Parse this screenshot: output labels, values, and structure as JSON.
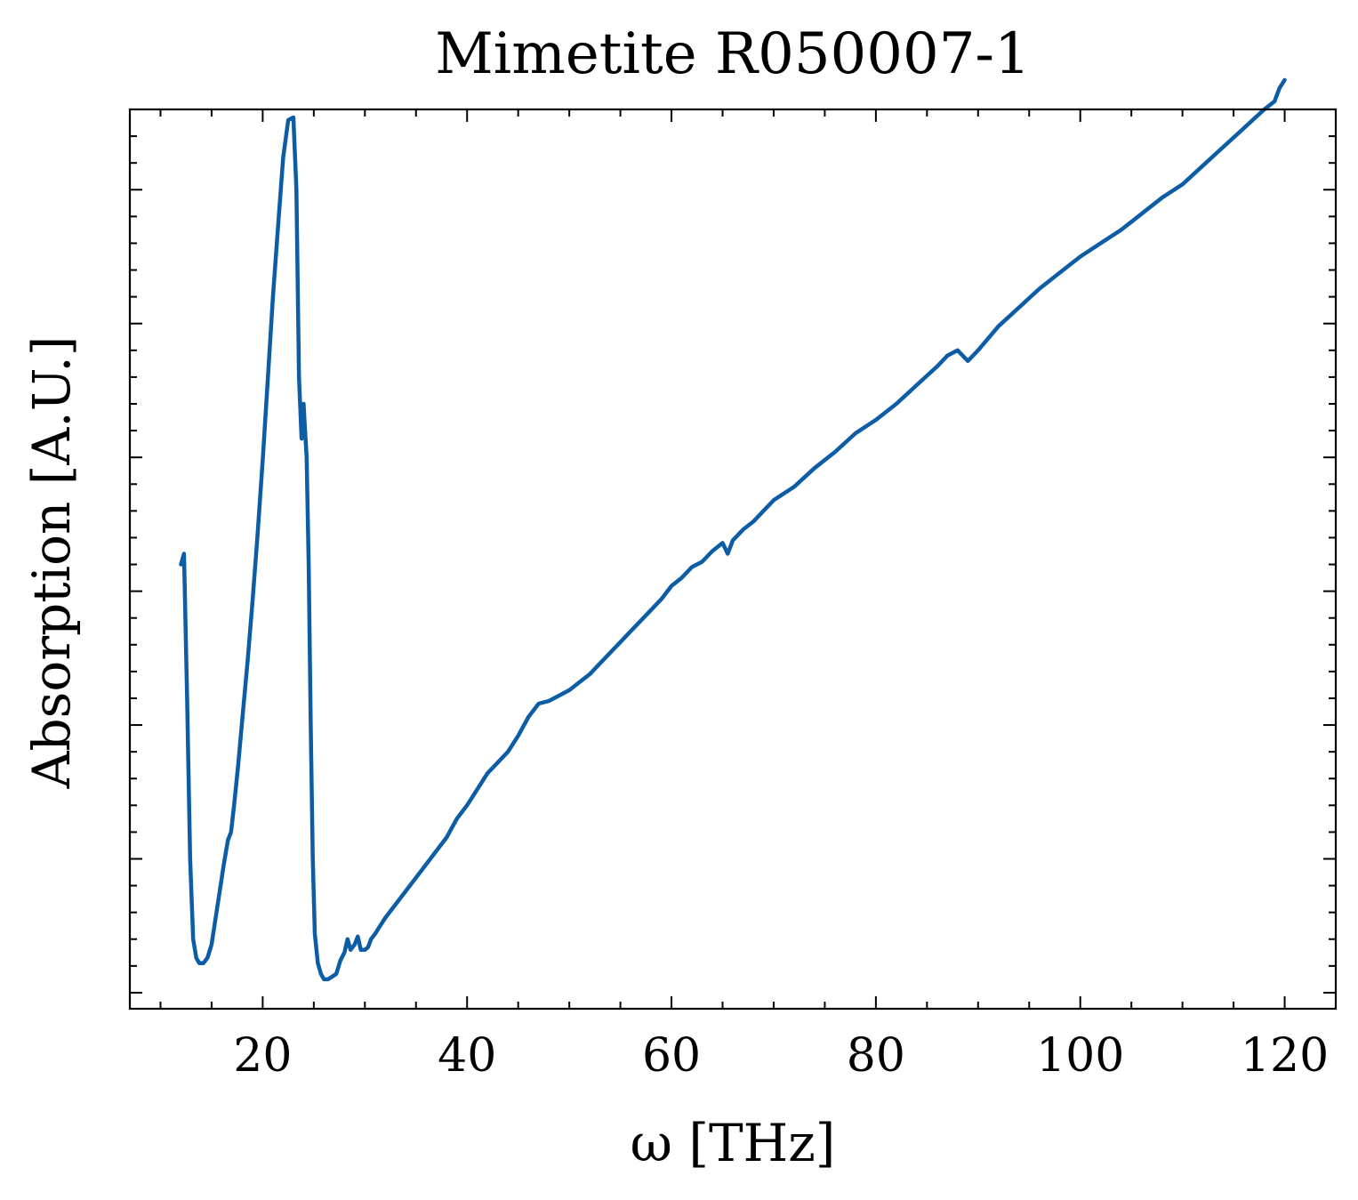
{
  "chart_data": {
    "type": "line",
    "title": "Mimetite R050007-1",
    "xlabel": "ω [THz]",
    "ylabel": "Absorption [A.U.]",
    "xlim": [
      7,
      125
    ],
    "ylim": [
      0.4,
      34.0
    ],
    "x_ticks": [
      20,
      40,
      60,
      80,
      100,
      120
    ],
    "x_tick_labels": [
      "20",
      "40",
      "60",
      "80",
      "100",
      "120"
    ],
    "y_major_ticks": [
      1,
      6,
      11,
      16,
      21,
      26,
      31
    ],
    "y_tick_labels_visible": false,
    "grid": false,
    "legend": "none",
    "ticks_direction": "in",
    "mirror_ticks": true,
    "series_color": "#0c5da5",
    "series": [
      {
        "x": [
          12.0,
          12.3,
          12.6,
          12.9,
          13.2,
          13.5,
          13.8,
          14.2,
          14.6,
          15.0,
          15.4,
          15.8,
          16.2,
          16.6,
          16.9,
          17.2,
          17.6,
          18.0,
          18.5,
          19.0,
          19.5,
          20.0,
          20.5,
          21.0,
          21.5,
          22.0,
          22.5,
          23.0,
          23.3,
          23.55,
          23.8,
          24.0,
          24.1,
          24.3,
          24.5,
          24.7,
          24.9,
          25.1,
          25.4,
          25.7,
          26.0,
          26.4,
          26.8,
          27.2,
          27.6,
          28.0,
          28.3,
          28.6,
          29.0,
          29.3,
          29.6,
          30.0,
          30.3,
          30.6,
          31.0,
          31.5,
          32.0,
          33.0,
          34.0,
          35.0,
          36.0,
          37.0,
          38.0,
          39.0,
          40.0,
          41.0,
          42.0,
          43.0,
          44.0,
          45.0,
          46.0,
          47.0,
          48.0,
          49.0,
          50.0,
          51.0,
          52.0,
          53.0,
          54.0,
          55.0,
          56.0,
          57.0,
          58.0,
          59.0,
          60.0,
          61.0,
          62.0,
          63.0,
          64.0,
          65.0,
          65.5,
          66.0,
          67.0,
          68.0,
          69.0,
          70.0,
          72.0,
          74.0,
          76.0,
          78.0,
          80.0,
          82.0,
          84.0,
          86.0,
          87.0,
          88.0,
          89.0,
          90.0,
          92.0,
          94.0,
          96.0,
          98.0,
          100.0,
          102.0,
          104.0,
          106.0,
          108.0,
          110.0,
          112.0,
          114.0,
          116.0,
          118.0,
          119.0,
          119.5,
          120.0
        ],
        "y": [
          17.0,
          17.4,
          12.0,
          6.0,
          3.0,
          2.3,
          2.1,
          2.1,
          2.3,
          2.8,
          3.8,
          4.8,
          5.8,
          6.7,
          7.0,
          8.0,
          9.5,
          11.2,
          13.3,
          15.6,
          18.1,
          20.9,
          23.9,
          27.0,
          29.6,
          32.2,
          33.6,
          33.7,
          31.0,
          24.0,
          21.7,
          23.0,
          22.3,
          21.0,
          17.0,
          11.0,
          6.0,
          3.2,
          2.1,
          1.7,
          1.5,
          1.5,
          1.6,
          1.7,
          2.2,
          2.5,
          3.0,
          2.6,
          2.8,
          3.1,
          2.6,
          2.6,
          2.7,
          3.0,
          3.2,
          3.5,
          3.8,
          4.3,
          4.8,
          5.3,
          5.8,
          6.3,
          6.8,
          7.5,
          8.0,
          8.6,
          9.2,
          9.6,
          10.0,
          10.6,
          11.3,
          11.8,
          11.9,
          12.1,
          12.3,
          12.6,
          12.9,
          13.3,
          13.7,
          14.1,
          14.5,
          14.9,
          15.3,
          15.7,
          16.2,
          16.5,
          16.9,
          17.1,
          17.5,
          17.8,
          17.4,
          17.9,
          18.3,
          18.6,
          19.0,
          19.4,
          19.9,
          20.6,
          21.2,
          21.9,
          22.4,
          23.0,
          23.7,
          24.4,
          24.8,
          25.0,
          24.6,
          25.0,
          25.9,
          26.6,
          27.3,
          27.9,
          28.5,
          29.0,
          29.5,
          30.1,
          30.7,
          31.2,
          31.9,
          32.6,
          33.3,
          34.0,
          34.3,
          34.8,
          35.1
        ]
      }
    ]
  }
}
